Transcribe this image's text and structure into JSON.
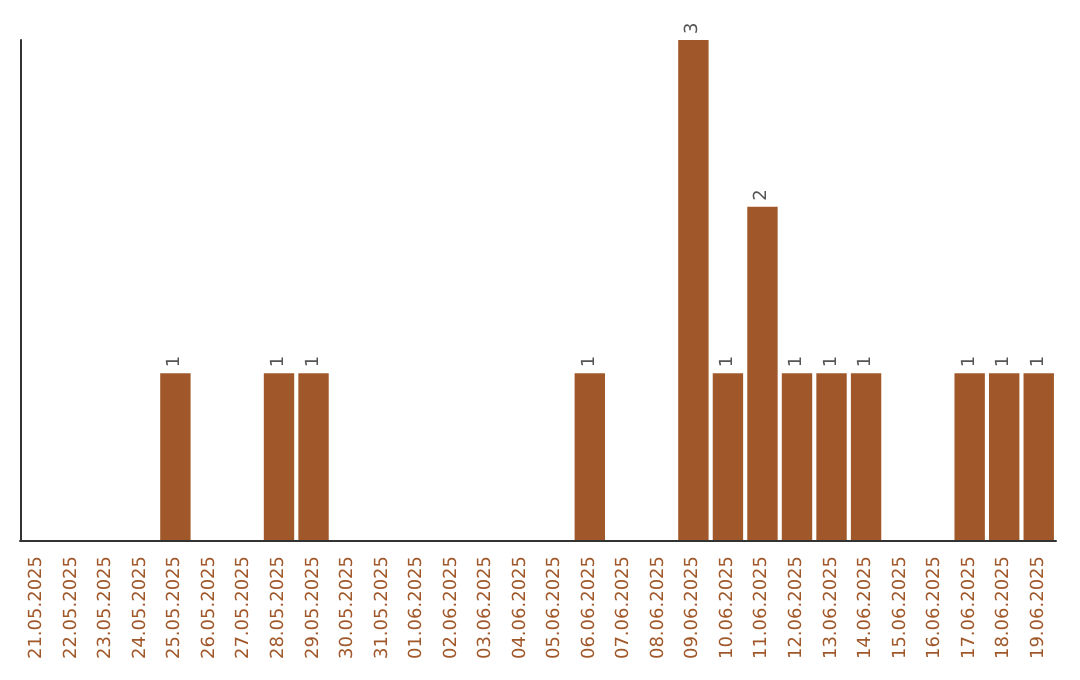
{
  "chart_data": {
    "type": "bar",
    "categories": [
      "21.05.2025",
      "22.05.2025",
      "23.05.2025",
      "24.05.2025",
      "25.05.2025",
      "26.05.2025",
      "27.05.2025",
      "28.05.2025",
      "29.05.2025",
      "30.05.2025",
      "31.05.2025",
      "01.06.2025",
      "02.06.2025",
      "03.06.2025",
      "04.06.2025",
      "05.06.2025",
      "06.06.2025",
      "07.06.2025",
      "08.06.2025",
      "09.06.2025",
      "10.06.2025",
      "11.06.2025",
      "12.06.2025",
      "13.06.2025",
      "14.06.2025",
      "15.06.2025",
      "16.06.2025",
      "17.06.2025",
      "18.06.2025",
      "19.06.2025"
    ],
    "values": [
      0,
      0,
      0,
      0,
      1,
      0,
      0,
      1,
      1,
      0,
      0,
      0,
      0,
      0,
      0,
      0,
      1,
      0,
      0,
      3,
      1,
      2,
      1,
      1,
      1,
      0,
      0,
      1,
      1,
      1
    ],
    "value_labels": [
      null,
      null,
      null,
      null,
      "1",
      null,
      null,
      "1",
      "1",
      null,
      null,
      null,
      null,
      null,
      null,
      null,
      "1",
      null,
      null,
      "3",
      "1",
      "2",
      "1",
      "1",
      "1",
      null,
      null,
      "1",
      "1",
      "1"
    ],
    "color": "#a0582a",
    "tick_labels": "x",
    "grid": false
  }
}
